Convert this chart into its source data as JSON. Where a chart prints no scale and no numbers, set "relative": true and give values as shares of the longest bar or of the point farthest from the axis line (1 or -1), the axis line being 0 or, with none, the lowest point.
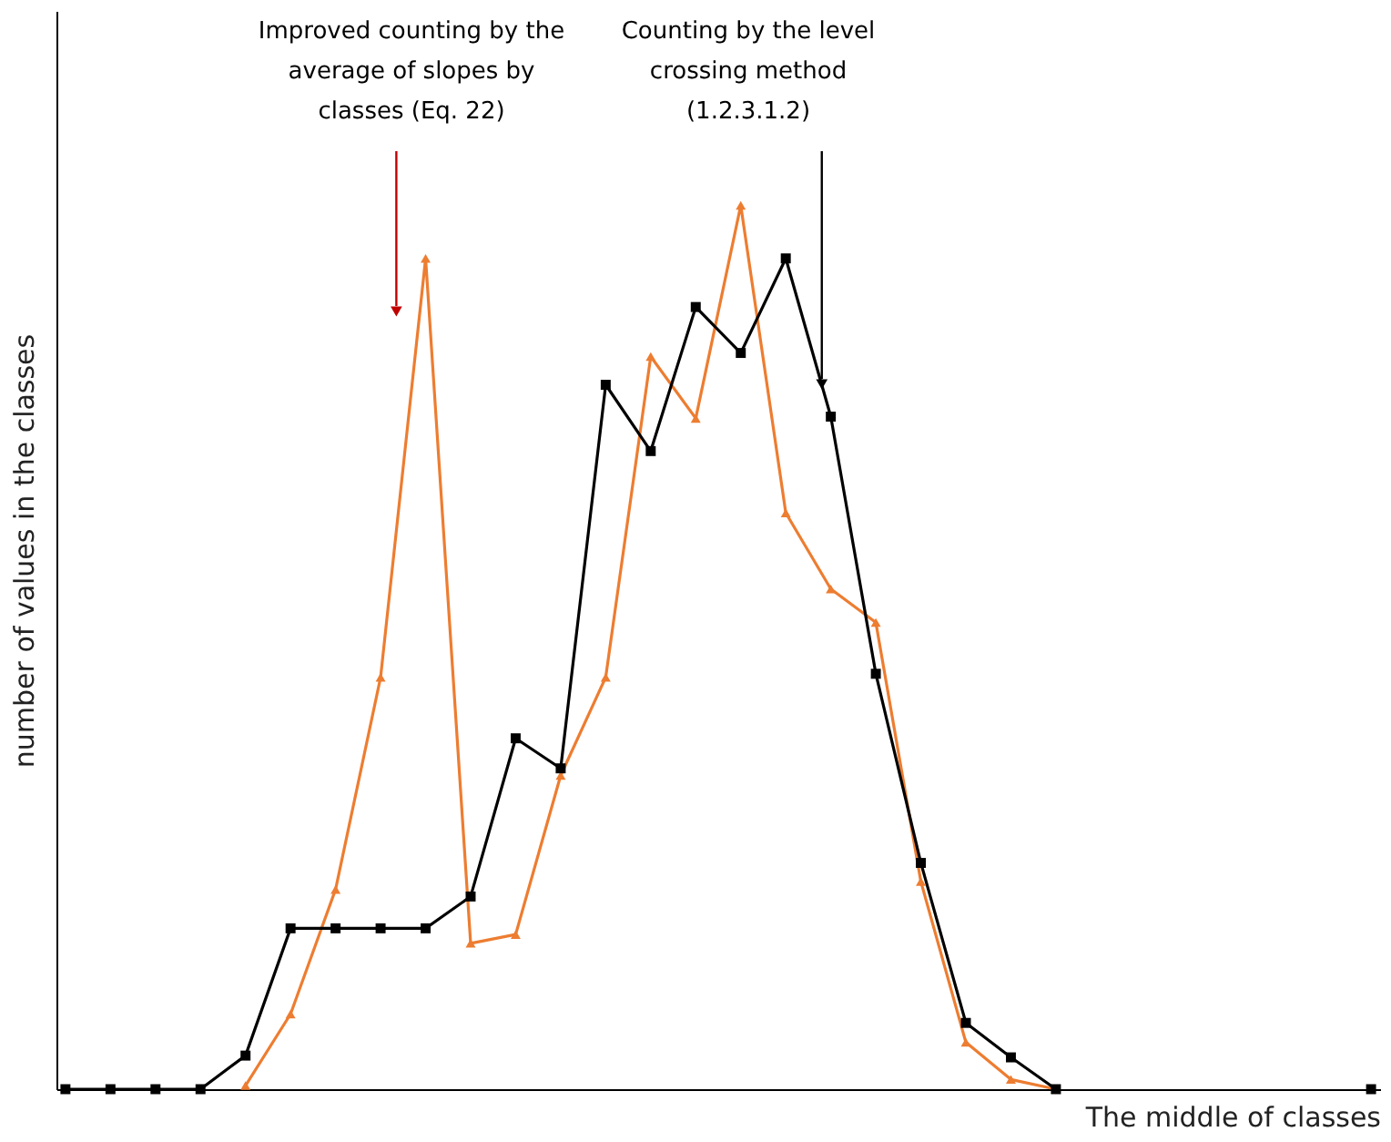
{
  "chart_data": {
    "type": "line",
    "relative": true,
    "xlabel": "The middle of classes",
    "ylabel": "number of values in the classes",
    "categories": [
      null,
      null,
      null,
      null,
      null,
      null,
      null,
      null,
      null,
      null,
      null,
      null,
      null,
      null,
      null,
      null,
      null,
      null,
      null,
      null,
      null,
      null,
      null,
      null,
      null,
      null,
      null,
      null,
      null,
      null
    ],
    "series": [
      {
        "color": "#ed7d31",
        "marker": "triangle",
        "values": [
          null,
          null,
          null,
          null,
          0.004,
          0.085,
          0.226,
          0.466,
          0.94,
          0.165,
          0.175,
          0.355,
          0.466,
          0.829,
          0.759,
          1,
          0.652,
          0.566,
          0.528,
          0.235,
          0.053,
          0.011,
          0,
          null,
          null,
          null,
          null,
          null,
          null,
          null
        ]
      },
      {
        "color": "#000000",
        "marker": "square",
        "values": [
          0,
          0,
          0,
          0,
          0.038,
          0.182,
          0.182,
          0.182,
          0.182,
          0.218,
          0.397,
          0.363,
          0.797,
          0.722,
          0.885,
          0.833,
          0.94,
          0.761,
          0.47,
          0.256,
          0.075,
          0.036,
          0,
          null,
          null,
          null,
          null,
          null,
          null,
          0
        ]
      }
    ],
    "annotations": [
      "Improved counting by the average of slopes by classes (Eq. 22)",
      "Counting by the level crossing method (1.2.3.1.2)"
    ],
    "grid": false,
    "legend": false
  }
}
